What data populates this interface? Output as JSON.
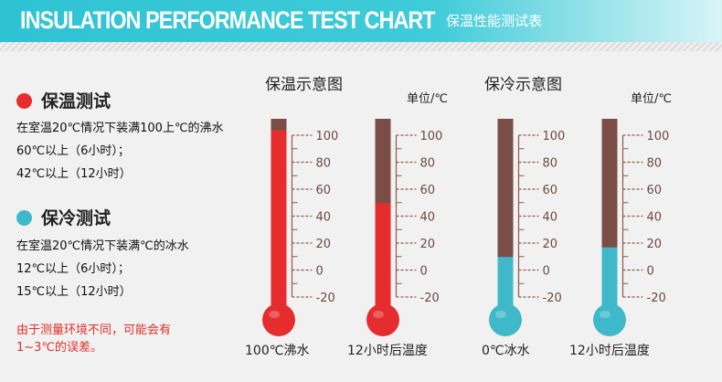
{
  "header": {
    "title": "INSULATION PERFORMANCE TEST CHART",
    "subtitle": "保温性能测试表"
  },
  "left_panel": {
    "warm": {
      "title": "保温测试",
      "lines": [
        "在室温20℃情况下装满100上℃的沸水",
        "60℃以上（6小时）；",
        "42℃以上（12小时）"
      ]
    },
    "cold": {
      "title": "保冷测试",
      "lines": [
        "在室温20℃情况下装满℃的冰水",
        "12℃以上（6小时）；",
        "15℃以上（12小时）"
      ]
    },
    "note_lines": [
      "由于测量环境不同，可能会有",
      "1~3℃的误差。"
    ]
  },
  "charts": [
    {
      "title": "保温示意图",
      "unit": "单位/℃",
      "ticks": [
        "100",
        "80",
        "60",
        "40",
        "20",
        "0",
        "-20"
      ],
      "thermometers": [
        {
          "label": "100℃沸水",
          "level": 0.94,
          "color": "#e52d2d"
        },
        {
          "label": "12小时后温度",
          "level": 0.56,
          "color": "#e52d2d"
        }
      ]
    },
    {
      "title": "保冷示意图",
      "unit": "单位/℃",
      "ticks": [
        "100",
        "80",
        "60",
        "40",
        "20",
        "0",
        "-20"
      ],
      "thermometers": [
        {
          "label": "0℃冰水",
          "level": 0.28,
          "color": "#3fb9c9"
        },
        {
          "label": "12小时后温度",
          "level": 0.33,
          "color": "#3fb9c9"
        }
      ]
    }
  ],
  "colors": {
    "tube_empty": "#7a4e47",
    "scale": "#8a5a4e"
  }
}
